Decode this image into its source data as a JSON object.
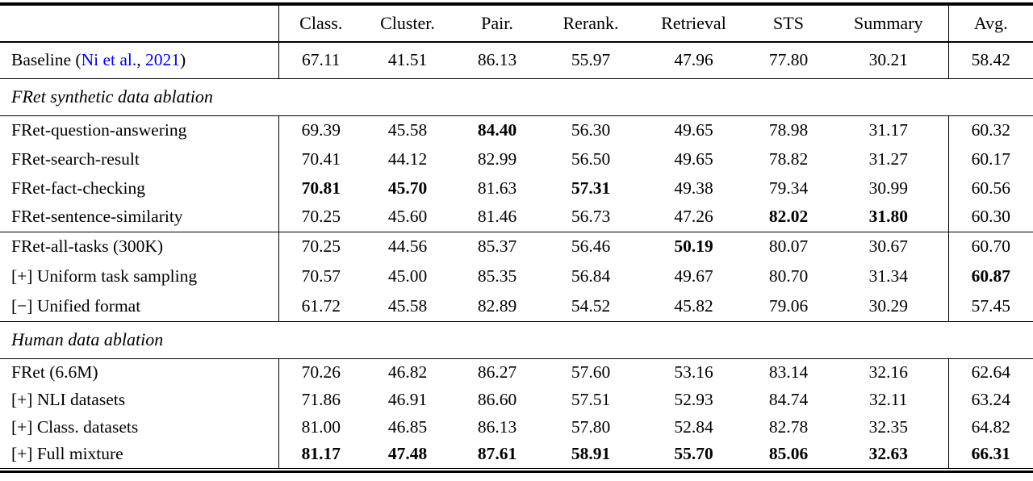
{
  "page": {
    "background": "#ffffff",
    "text_color": "#000000",
    "link_color": "#0000EE"
  },
  "table": {
    "columns": [
      "Class.",
      "Cluster.",
      "Pair.",
      "Rerank.",
      "Retrieval",
      "STS",
      "Summary",
      "Avg."
    ],
    "baseline": {
      "prefix": "Baseline (",
      "citation_authors": "Ni et al.",
      "citation_sep": ", ",
      "citation_year": "2021",
      "suffix": ")",
      "values": [
        "67.11",
        "41.51",
        "86.13",
        "55.97",
        "47.96",
        "77.80",
        "30.21",
        "58.42"
      ],
      "bold": [
        0,
        0,
        0,
        0,
        0,
        0,
        0,
        0
      ]
    },
    "sections": [
      {
        "title": "FRet synthetic data ablation",
        "blocks": [
          [
            {
              "label": "FRet-question-answering",
              "values": [
                "69.39",
                "45.58",
                "84.40",
                "56.30",
                "49.65",
                "78.98",
                "31.17",
                "60.32"
              ],
              "bold": [
                0,
                0,
                1,
                0,
                0,
                0,
                0,
                0
              ]
            },
            {
              "label": "FRet-search-result",
              "values": [
                "70.41",
                "44.12",
                "82.99",
                "56.50",
                "49.65",
                "78.82",
                "31.27",
                "60.17"
              ],
              "bold": [
                0,
                0,
                0,
                0,
                0,
                0,
                0,
                0
              ]
            },
            {
              "label": "FRet-fact-checking",
              "values": [
                "70.81",
                "45.70",
                "81.63",
                "57.31",
                "49.38",
                "79.34",
                "30.99",
                "60.56"
              ],
              "bold": [
                1,
                1,
                0,
                1,
                0,
                0,
                0,
                0
              ]
            },
            {
              "label": "FRet-sentence-similarity",
              "values": [
                "70.25",
                "45.60",
                "81.46",
                "56.73",
                "47.26",
                "82.02",
                "31.80",
                "60.30"
              ],
              "bold": [
                0,
                0,
                0,
                0,
                0,
                1,
                1,
                0
              ]
            }
          ],
          [
            {
              "label": "FRet-all-tasks (300K)",
              "values": [
                "70.25",
                "44.56",
                "85.37",
                "56.46",
                "50.19",
                "80.07",
                "30.67",
                "60.70"
              ],
              "bold": [
                0,
                0,
                0,
                0,
                1,
                0,
                0,
                0
              ]
            },
            {
              "label": "[+] Uniform task sampling",
              "values": [
                "70.57",
                "45.00",
                "85.35",
                "56.84",
                "49.67",
                "80.70",
                "31.34",
                "60.87"
              ],
              "bold": [
                0,
                0,
                0,
                0,
                0,
                0,
                0,
                1
              ]
            },
            {
              "label": "[−] Unified format",
              "values": [
                "61.72",
                "45.58",
                "82.89",
                "54.52",
                "45.82",
                "79.06",
                "30.29",
                "57.45"
              ],
              "bold": [
                0,
                0,
                0,
                0,
                0,
                0,
                0,
                0
              ]
            }
          ]
        ]
      },
      {
        "title": "Human data ablation",
        "blocks": [
          [
            {
              "label": "FRet (6.6M)",
              "values": [
                "70.26",
                "46.82",
                "86.27",
                "57.60",
                "53.16",
                "83.14",
                "32.16",
                "62.64"
              ],
              "bold": [
                0,
                0,
                0,
                0,
                0,
                0,
                0,
                0
              ]
            },
            {
              "label": "[+] NLI datasets",
              "values": [
                "71.86",
                "46.91",
                "86.60",
                "57.51",
                "52.93",
                "84.74",
                "32.11",
                "63.24"
              ],
              "bold": [
                0,
                0,
                0,
                0,
                0,
                0,
                0,
                0
              ]
            },
            {
              "label": "[+] Class. datasets",
              "values": [
                "81.00",
                "46.85",
                "86.13",
                "57.80",
                "52.84",
                "82.78",
                "32.35",
                "64.82"
              ],
              "bold": [
                0,
                0,
                0,
                0,
                0,
                0,
                0,
                0
              ]
            },
            {
              "label": "[+] Full mixture",
              "values": [
                "81.17",
                "47.48",
                "87.61",
                "58.91",
                "55.70",
                "85.06",
                "32.63",
                "66.31"
              ],
              "bold": [
                1,
                1,
                1,
                1,
                1,
                1,
                1,
                1
              ]
            }
          ]
        ]
      }
    ]
  }
}
